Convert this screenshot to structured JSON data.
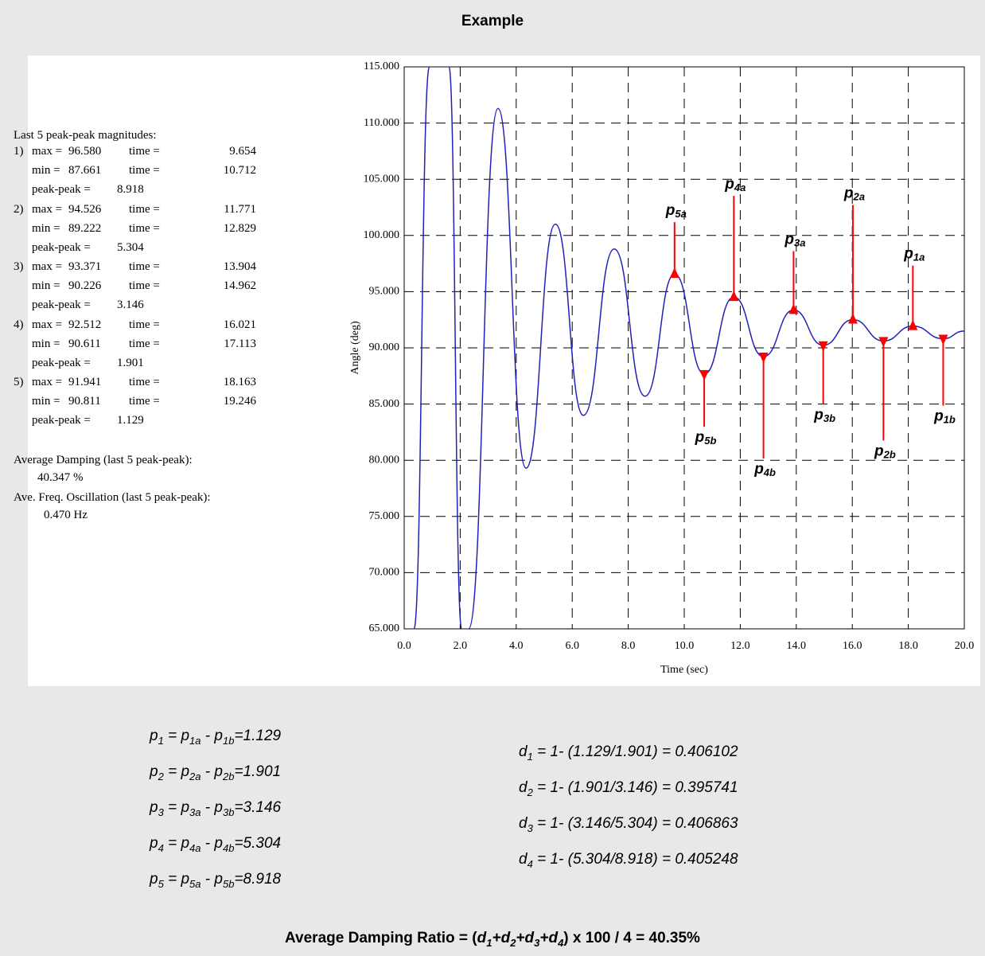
{
  "header": {
    "title": "Example"
  },
  "summary": {
    "heading": "Last 5 peak-peak magnitudes:",
    "max_label": "max =",
    "min_label": "min =",
    "time_label": "time =",
    "pp_label": "peak-peak =",
    "entries": [
      {
        "index": "1)",
        "max": "96.580",
        "max_time": "9.654",
        "min": "87.661",
        "min_time": "10.712",
        "peak_peak": "8.918"
      },
      {
        "index": "2)",
        "max": "94.526",
        "max_time": "11.771",
        "min": "89.222",
        "min_time": "12.829",
        "peak_peak": "5.304"
      },
      {
        "index": "3)",
        "max": "93.371",
        "max_time": "13.904",
        "min": "90.226",
        "min_time": "14.962",
        "peak_peak": "3.146"
      },
      {
        "index": "4)",
        "max": "92.512",
        "max_time": "16.021",
        "min": "90.611",
        "min_time": "17.113",
        "peak_peak": "1.901"
      },
      {
        "index": "5)",
        "max": "91.941",
        "max_time": "18.163",
        "min": "90.811",
        "min_time": "19.246",
        "peak_peak": "1.129"
      }
    ],
    "damping_label": "Average Damping (last 5 peak-peak):",
    "damping": "40.347 %",
    "freq_label": "Ave. Freq. Oscillation (last 5 peak-peak):",
    "freq": "0.470 Hz"
  },
  "chart_data": {
    "type": "line",
    "x_label": "Time (sec)",
    "y_label": "Angle (deg)",
    "grid": true,
    "xlim": [
      0,
      20
    ],
    "ylim": [
      65,
      115
    ],
    "xticks": [
      {
        "value": 0,
        "label": "0.0"
      },
      {
        "value": 2,
        "label": "2.0"
      },
      {
        "value": 4,
        "label": "4.0"
      },
      {
        "value": 6,
        "label": "6.0"
      },
      {
        "value": 8,
        "label": "8.0"
      },
      {
        "value": 10,
        "label": "10.0"
      },
      {
        "value": 12,
        "label": "12.0"
      },
      {
        "value": 14,
        "label": "14.0"
      },
      {
        "value": 16,
        "label": "16.0"
      },
      {
        "value": 18,
        "label": "18.0"
      },
      {
        "value": 20,
        "label": "20.0"
      }
    ],
    "yticks": [
      {
        "value": 65,
        "label": "65.000"
      },
      {
        "value": 70,
        "label": "70.000"
      },
      {
        "value": 75,
        "label": "75.000"
      },
      {
        "value": 80,
        "label": "80.000"
      },
      {
        "value": 85,
        "label": "85.000"
      },
      {
        "value": 90,
        "label": "90.000"
      },
      {
        "value": 95,
        "label": "95.000"
      },
      {
        "value": 100,
        "label": "100.000"
      },
      {
        "value": 105,
        "label": "105.000"
      },
      {
        "value": 110,
        "label": "110.000"
      },
      {
        "value": 115,
        "label": "115.000"
      }
    ],
    "x": [
      0.35,
      0.9,
      1.25,
      1.6,
      2.05,
      2.17,
      2.3,
      3.35,
      4.35,
      5.4,
      6.4,
      7.5,
      8.6,
      9.654,
      10.712,
      11.771,
      12.829,
      13.904,
      14.962,
      16.021,
      17.113,
      18.163,
      19.246,
      20
    ],
    "series": [
      {
        "color": "#2020b8",
        "values": [
          65,
          115,
          null,
          115,
          65,
          null,
          65,
          111.3,
          79.3,
          101,
          84,
          98.8,
          85.7,
          96.58,
          87.661,
          94.526,
          89.222,
          93.371,
          90.226,
          92.512,
          90.611,
          91.941,
          90.811,
          91.5
        ]
      }
    ],
    "annotation_color": "#ff0000",
    "annotations": [
      {
        "text": "p",
        "sub": "5a"
      },
      {
        "text": "p",
        "sub": "5b"
      },
      {
        "text": "p",
        "sub": "4a"
      },
      {
        "text": "p",
        "sub": "4b"
      },
      {
        "text": "p",
        "sub": "3a"
      },
      {
        "text": "p",
        "sub": "3b"
      },
      {
        "text": "p",
        "sub": "2a"
      },
      {
        "text": "p",
        "sub": "2b"
      },
      {
        "text": "p",
        "sub": "1a"
      },
      {
        "text": "p",
        "sub": "1b"
      }
    ]
  },
  "formulas": {
    "peaks": [
      [
        {
          "t": "p",
          "s": "1"
        },
        {
          "t": " = p",
          "s": "1a"
        },
        {
          "t": " - p",
          "s": "1b"
        },
        {
          "t": "=1.129"
        }
      ],
      [
        {
          "t": "p",
          "s": "2"
        },
        {
          "t": " = p",
          "s": "2a"
        },
        {
          "t": " - p",
          "s": "2b"
        },
        {
          "t": "=1.901"
        }
      ],
      [
        {
          "t": "p",
          "s": "3"
        },
        {
          "t": " = p",
          "s": "3a"
        },
        {
          "t": " - p",
          "s": "3b"
        },
        {
          "t": "=3.146"
        }
      ],
      [
        {
          "t": "p",
          "s": "4"
        },
        {
          "t": " = p",
          "s": "4a"
        },
        {
          "t": " - p",
          "s": "4b"
        },
        {
          "t": "=5.304"
        }
      ],
      [
        {
          "t": "p",
          "s": "5"
        },
        {
          "t": " = p",
          "s": "5a"
        },
        {
          "t": " - p",
          "s": "5b"
        },
        {
          "t": "=8.918"
        }
      ]
    ],
    "dampings": [
      [
        {
          "t": "d",
          "s": "1"
        },
        {
          "t": " = 1- (1.129/1.901) = 0.406102"
        }
      ],
      [
        {
          "t": "d",
          "s": "2"
        },
        {
          "t": " = 1- (1.901/3.146) = 0.395741"
        }
      ],
      [
        {
          "t": "d",
          "s": "3"
        },
        {
          "t": " = 1- (3.146/5.304) = 0.406863"
        }
      ],
      [
        {
          "t": "d",
          "s": "4"
        },
        {
          "t": " = 1- (5.304/8.918) = 0.405248"
        }
      ]
    ],
    "result": [
      {
        "t": "Average Damping Ratio = ("
      },
      {
        "t": "d",
        "s": "1"
      },
      {
        "t": "+d",
        "s": "2"
      },
      {
        "t": "+d",
        "s": "3"
      },
      {
        "t": "+d",
        "s": "4"
      },
      {
        "t": ") x 100 / 4 = 40.35%"
      }
    ]
  }
}
